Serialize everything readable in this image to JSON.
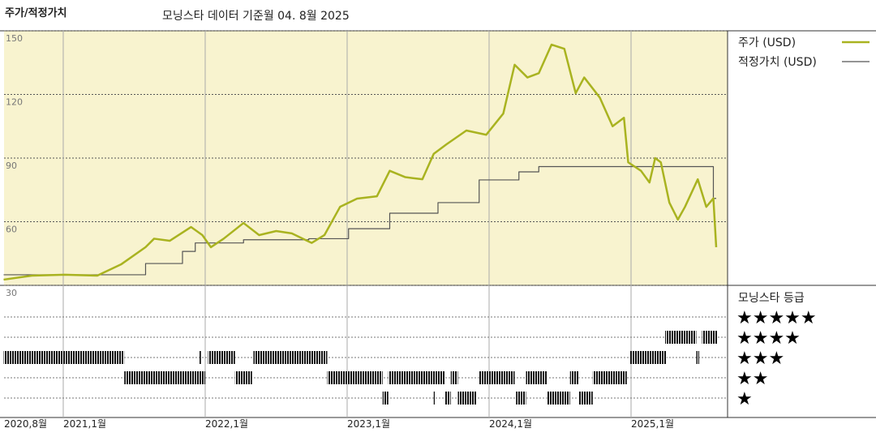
{
  "chart_data": {
    "type": "line",
    "title": "주가/적정가치",
    "subtitle": "모닝스타 데이터 기준월 04. 8월 2025",
    "xlim": [
      2020.583,
      2025.68
    ],
    "xticks": [
      {
        "value": 2020.583,
        "label": "2020,8월"
      },
      {
        "value": 2021,
        "label": "2021,1월"
      },
      {
        "value": 2022,
        "label": "2022,1월"
      },
      {
        "value": 2023,
        "label": "2023,1월"
      },
      {
        "value": 2024,
        "label": "2024,1월"
      },
      {
        "value": 2025,
        "label": "2025,1월"
      }
    ],
    "ylim": [
      30,
      150
    ],
    "yticks": [
      30,
      60,
      90,
      120,
      150
    ],
    "grid": true,
    "series": [
      {
        "name": "주가 (USD)",
        "color": "#a9b320",
        "step": false,
        "x": [
          2020.58,
          2020.78,
          2021.01,
          2021.24,
          2021.41,
          2021.58,
          2021.64,
          2021.75,
          2021.9,
          2021.98,
          2022.04,
          2022.13,
          2022.27,
          2022.38,
          2022.5,
          2022.61,
          2022.75,
          2022.84,
          2022.95,
          2023.07,
          2023.21,
          2023.3,
          2023.41,
          2023.53,
          2023.61,
          2023.7,
          2023.84,
          2023.98,
          2024.1,
          2024.18,
          2024.27,
          2024.35,
          2024.44,
          2024.53,
          2024.61,
          2024.67,
          2024.78,
          2024.87,
          2024.95,
          2024.98,
          2025.07,
          2025.13,
          2025.17,
          2025.21,
          2025.27,
          2025.33,
          2025.38,
          2025.47,
          2025.53,
          2025.58,
          2025.6
        ],
        "values": [
          32.7,
          34.6,
          35,
          34.6,
          40,
          48,
          52,
          51,
          57.5,
          53.7,
          48,
          52,
          59.4,
          53.7,
          55.6,
          54.5,
          50,
          53.7,
          67,
          70.9,
          72,
          84,
          81,
          80,
          92,
          96.5,
          103,
          101,
          111,
          134,
          128,
          130,
          143.5,
          141.5,
          120.6,
          128,
          118.5,
          105,
          109,
          88,
          84,
          78.5,
          90,
          88,
          69,
          61,
          67,
          80,
          67,
          71,
          48
        ]
      },
      {
        "name": "적정가치 (USD)",
        "color": "#555555",
        "step": true,
        "x": [
          2020.58,
          2021.58,
          2021.84,
          2021.93,
          2022.27,
          2022.73,
          2023.01,
          2023.3,
          2023.64,
          2023.93,
          2024.21,
          2024.35,
          2025.58,
          2025.6
        ],
        "values": [
          35,
          40.3,
          46,
          50,
          51.5,
          52,
          56.7,
          64,
          69,
          79.7,
          83.5,
          86,
          71,
          71
        ]
      }
    ],
    "rating_title": "모닝스타 등급",
    "star_labels": [
      "★★★★★",
      "★★★★",
      "★★★",
      "★★",
      "★"
    ],
    "ratings": {
      "start": [
        2020.58,
        2021.43,
        2021.96,
        2022.02,
        2022.21,
        2022.34,
        2022.86,
        2023.25,
        2023.29,
        2023.61,
        2023.69,
        2023.73,
        2023.78,
        2023.93,
        2024.19,
        2024.26,
        2024.41,
        2024.57,
        2024.63,
        2024.73,
        2024.99,
        2025.24,
        2025.46,
        2025.5
      ],
      "end": [
        2021.43,
        2022.0,
        2021.97,
        2022.21,
        2022.33,
        2022.86,
        2023.25,
        2023.29,
        2023.69,
        2023.62,
        2023.73,
        2023.78,
        2023.91,
        2024.18,
        2024.26,
        2024.41,
        2024.57,
        2024.63,
        2024.73,
        2024.97,
        2025.25,
        2025.46,
        2025.48,
        2025.61
      ],
      "stars": [
        3,
        2,
        3,
        3,
        2,
        3,
        2,
        1,
        2,
        1,
        1,
        2,
        1,
        2,
        1,
        2,
        1,
        2,
        1,
        2,
        3,
        4,
        3,
        4
      ]
    }
  }
}
